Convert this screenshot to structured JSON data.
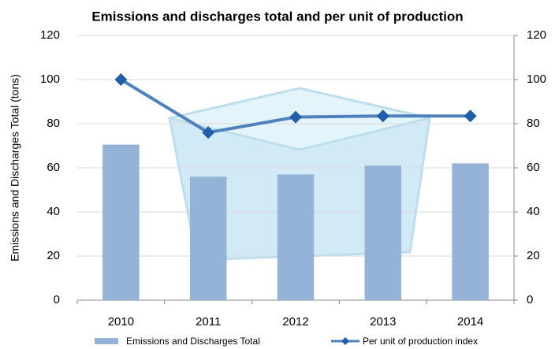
{
  "chart_data": {
    "type": "bar_line",
    "title": "Emissions and discharges total and per unit of production",
    "y_label": "Emissions and Discharges Total  (tons)",
    "categories": [
      "2010",
      "2011",
      "2012",
      "2013",
      "2014"
    ],
    "series": [
      {
        "name": "Emissions and Discharges Total",
        "type": "bar",
        "color": "#95b3d7",
        "values": [
          70.5,
          56,
          57,
          61,
          62
        ]
      },
      {
        "name": "Per unit of production index",
        "type": "line",
        "axis": "y2",
        "color": "#4f81bd",
        "values": [
          100,
          76,
          83,
          83.5,
          83.5
        ]
      }
    ],
    "ylim": [
      0,
      120
    ],
    "yticks": [
      0,
      20,
      40,
      60,
      80,
      100,
      120
    ],
    "y2lim": [
      0,
      120
    ],
    "y2ticks": [
      0,
      20,
      40,
      60,
      80,
      100,
      120
    ],
    "grid": true
  }
}
